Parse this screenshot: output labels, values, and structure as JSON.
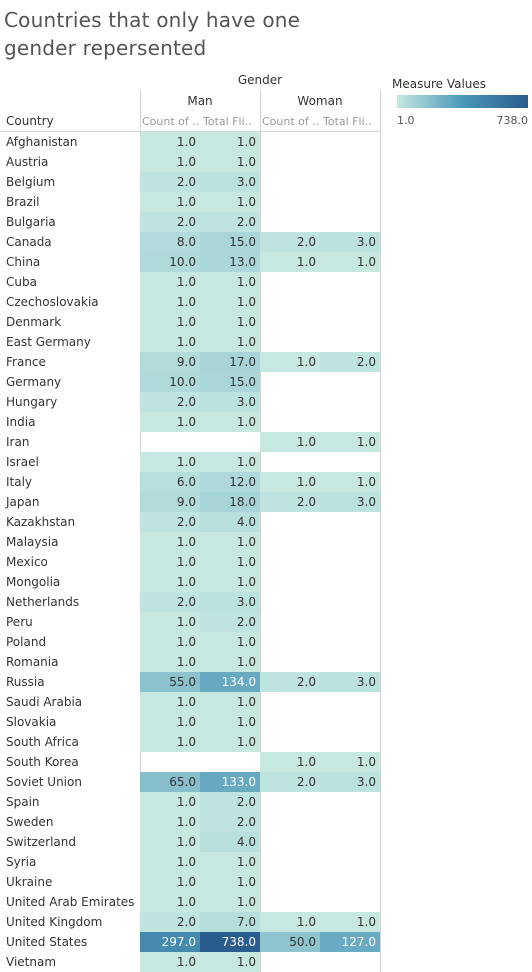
{
  "title": "Countries that only have one gender repersented",
  "header": {
    "gender_label": "Gender",
    "groups": [
      "Man",
      "Woman"
    ],
    "columns": [
      "Count of ..",
      "Total Fli..",
      "Count of ..",
      "Total Fli.."
    ],
    "row_label": "Country"
  },
  "legend": {
    "title": "Measure Values",
    "min_label": "1.0",
    "max_label": "738.0",
    "color_low": "#c6e8e1",
    "color_mid": "#4b97b8",
    "color_high": "#2b5c8e"
  },
  "chart_data": {
    "type": "table",
    "row_label": "Country",
    "column_groups": [
      "Man",
      "Woman"
    ],
    "measures": [
      "Count of ..",
      "Total Fli.."
    ],
    "color_range": [
      1.0,
      738.0
    ],
    "rows": [
      {
        "country": "Afghanistan",
        "values": [
          "1.0",
          "1.0",
          "",
          ""
        ]
      },
      {
        "country": "Austria",
        "values": [
          "1.0",
          "1.0",
          "",
          ""
        ]
      },
      {
        "country": "Belgium",
        "values": [
          "2.0",
          "3.0",
          "",
          ""
        ]
      },
      {
        "country": "Brazil",
        "values": [
          "1.0",
          "1.0",
          "",
          ""
        ]
      },
      {
        "country": "Bulgaria",
        "values": [
          "2.0",
          "2.0",
          "",
          ""
        ]
      },
      {
        "country": "Canada",
        "values": [
          "8.0",
          "15.0",
          "2.0",
          "3.0"
        ]
      },
      {
        "country": "China",
        "values": [
          "10.0",
          "13.0",
          "1.0",
          "1.0"
        ]
      },
      {
        "country": "Cuba",
        "values": [
          "1.0",
          "1.0",
          "",
          ""
        ]
      },
      {
        "country": "Czechoslovakia",
        "values": [
          "1.0",
          "1.0",
          "",
          ""
        ]
      },
      {
        "country": "Denmark",
        "values": [
          "1.0",
          "1.0",
          "",
          ""
        ]
      },
      {
        "country": "East Germany",
        "values": [
          "1.0",
          "1.0",
          "",
          ""
        ]
      },
      {
        "country": "France",
        "values": [
          "9.0",
          "17.0",
          "1.0",
          "2.0"
        ]
      },
      {
        "country": "Germany",
        "values": [
          "10.0",
          "15.0",
          "",
          ""
        ]
      },
      {
        "country": "Hungary",
        "values": [
          "2.0",
          "3.0",
          "",
          ""
        ]
      },
      {
        "country": "India",
        "values": [
          "1.0",
          "1.0",
          "",
          ""
        ]
      },
      {
        "country": "Iran",
        "values": [
          "",
          "",
          "1.0",
          "1.0"
        ]
      },
      {
        "country": "Israel",
        "values": [
          "1.0",
          "1.0",
          "",
          ""
        ]
      },
      {
        "country": "Italy",
        "values": [
          "6.0",
          "12.0",
          "1.0",
          "1.0"
        ]
      },
      {
        "country": "Japan",
        "values": [
          "9.0",
          "18.0",
          "2.0",
          "3.0"
        ]
      },
      {
        "country": "Kazakhstan",
        "values": [
          "2.0",
          "4.0",
          "",
          ""
        ]
      },
      {
        "country": "Malaysia",
        "values": [
          "1.0",
          "1.0",
          "",
          ""
        ]
      },
      {
        "country": "Mexico",
        "values": [
          "1.0",
          "1.0",
          "",
          ""
        ]
      },
      {
        "country": "Mongolia",
        "values": [
          "1.0",
          "1.0",
          "",
          ""
        ]
      },
      {
        "country": "Netherlands",
        "values": [
          "2.0",
          "3.0",
          "",
          ""
        ]
      },
      {
        "country": "Peru",
        "values": [
          "1.0",
          "2.0",
          "",
          ""
        ]
      },
      {
        "country": "Poland",
        "values": [
          "1.0",
          "1.0",
          "",
          ""
        ]
      },
      {
        "country": "Romania",
        "values": [
          "1.0",
          "1.0",
          "",
          ""
        ]
      },
      {
        "country": "Russia",
        "values": [
          "55.0",
          "134.0",
          "2.0",
          "3.0"
        ]
      },
      {
        "country": "Saudi Arabia",
        "values": [
          "1.0",
          "1.0",
          "",
          ""
        ]
      },
      {
        "country": "Slovakia",
        "values": [
          "1.0",
          "1.0",
          "",
          ""
        ]
      },
      {
        "country": "South Africa",
        "values": [
          "1.0",
          "1.0",
          "",
          ""
        ]
      },
      {
        "country": "South Korea",
        "values": [
          "",
          "",
          "1.0",
          "1.0"
        ]
      },
      {
        "country": "Soviet Union",
        "values": [
          "65.0",
          "133.0",
          "2.0",
          "3.0"
        ]
      },
      {
        "country": "Spain",
        "values": [
          "1.0",
          "2.0",
          "",
          ""
        ]
      },
      {
        "country": "Sweden",
        "values": [
          "1.0",
          "2.0",
          "",
          ""
        ]
      },
      {
        "country": "Switzerland",
        "values": [
          "1.0",
          "4.0",
          "",
          ""
        ]
      },
      {
        "country": "Syria",
        "values": [
          "1.0",
          "1.0",
          "",
          ""
        ]
      },
      {
        "country": "Ukraine",
        "values": [
          "1.0",
          "1.0",
          "",
          ""
        ]
      },
      {
        "country": "United Arab Emirates",
        "values": [
          "1.0",
          "1.0",
          "",
          ""
        ]
      },
      {
        "country": "United Kingdom",
        "values": [
          "2.0",
          "7.0",
          "1.0",
          "1.0"
        ]
      },
      {
        "country": "United States",
        "values": [
          "297.0",
          "738.0",
          "50.0",
          "127.0"
        ]
      },
      {
        "country": "Vietnam",
        "values": [
          "1.0",
          "1.0",
          "",
          ""
        ]
      }
    ]
  }
}
